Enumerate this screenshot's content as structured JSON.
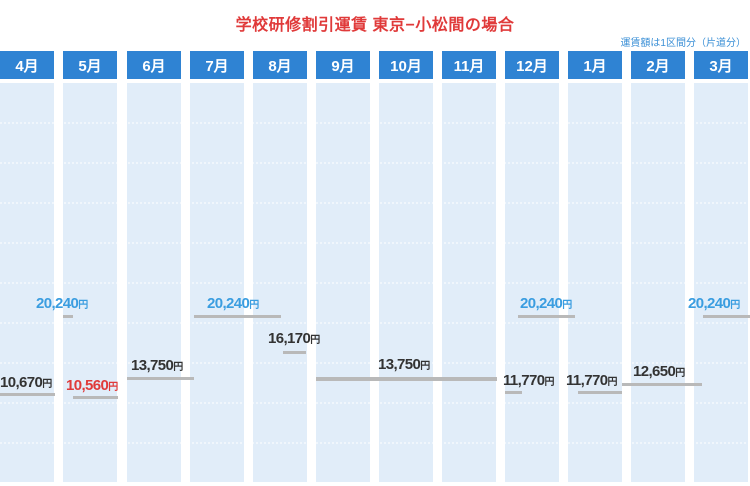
{
  "title": "学校研修割引運賃 東京−小松間の場合",
  "note": "運賃額は1区間分（片道分）",
  "currency_unit": "円",
  "colors": {
    "title": "#e03a3a",
    "header_bg": "#2f83d3",
    "column_bg": "#e1edf9",
    "grid_line": "#ffffff",
    "bar": "#b9b9b9",
    "price_default": "#333333",
    "price_highlight_high": "#3a9de0",
    "price_highlight_low": "#e03a3a"
  },
  "chart_data": {
    "type": "step",
    "title": "学校研修割引運賃 東京−小松間の場合",
    "categories": [
      "4月",
      "5月",
      "6月",
      "7月",
      "8月",
      "9月",
      "10月",
      "11月",
      "12月",
      "1月",
      "2月",
      "3月"
    ],
    "ylim": [
      8000,
      28000
    ],
    "grid": true,
    "price_series": [
      {
        "label": "20,240",
        "value": 20240,
        "from": 4,
        "to": 5,
        "color": "#3a9de0"
      },
      {
        "label": "20,240",
        "value": 20240,
        "from": 7,
        "to": 8,
        "color": "#3a9de0"
      },
      {
        "label": "20,240",
        "value": 20240,
        "from": 12,
        "to": 1,
        "color": "#3a9de0"
      },
      {
        "label": "20,240",
        "value": 20240,
        "from": 3,
        "to": 3,
        "color": "#3a9de0"
      },
      {
        "label": "16,170",
        "value": 16170,
        "from": 8,
        "to": 8,
        "color": "#333333"
      },
      {
        "label": "13,750",
        "value": 13750,
        "from": 6,
        "to": 7,
        "color": "#333333"
      },
      {
        "label": "13,750",
        "value": 13750,
        "from": 9,
        "to": 12,
        "color": "#333333"
      },
      {
        "label": "12,650",
        "value": 12650,
        "from": 2,
        "to": 3,
        "color": "#333333"
      },
      {
        "label": "11,770",
        "value": 11770,
        "from": 12,
        "to": 12,
        "color": "#333333"
      },
      {
        "label": "11,770",
        "value": 11770,
        "from": 1,
        "to": 1,
        "color": "#333333"
      },
      {
        "label": "10,670",
        "value": 10670,
        "from": 4,
        "to": 4,
        "color": "#333333"
      },
      {
        "label": "10,560",
        "value": 10560,
        "from": 5,
        "to": 5,
        "color": "#e03a3a"
      }
    ]
  }
}
